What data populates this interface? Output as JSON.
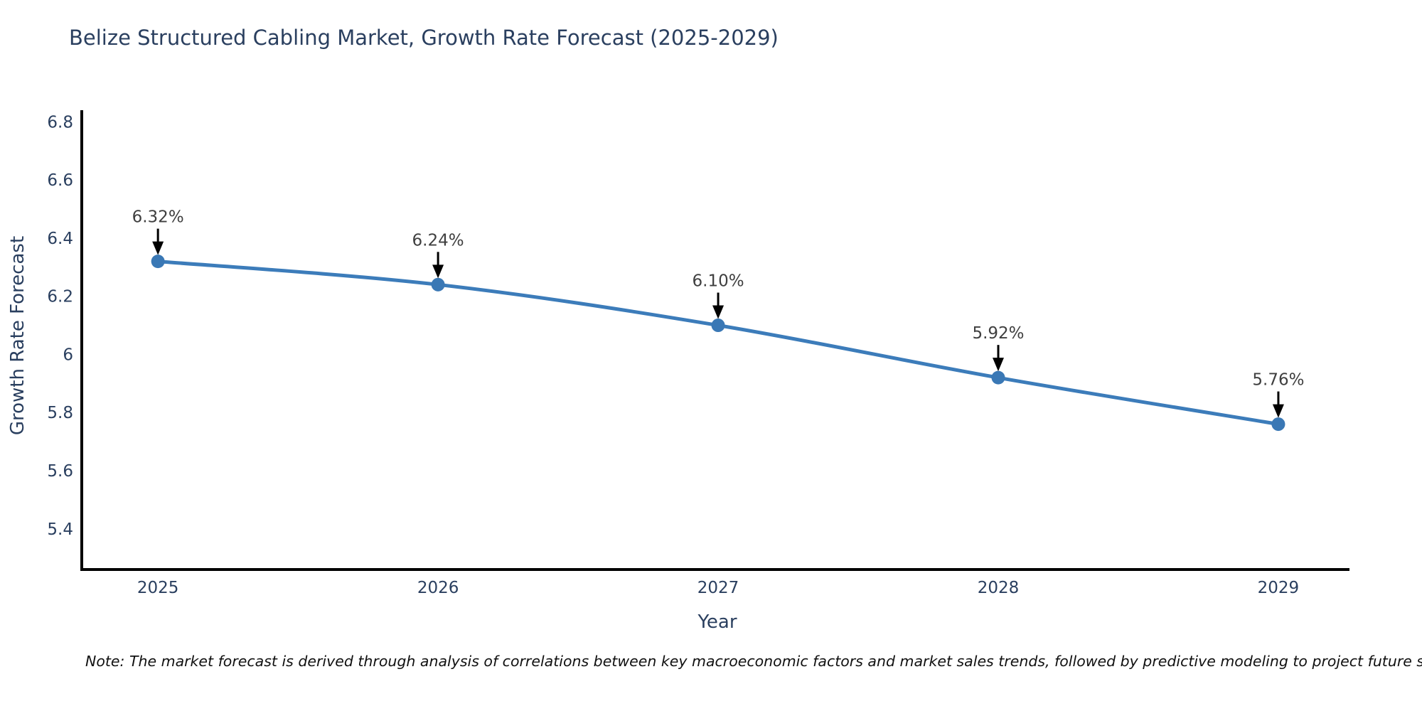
{
  "title": "Belize Structured Cabling Market, Growth Rate Forecast (2025-2029)",
  "note": "Note: The market forecast is derived through analysis of correlations between key macroeconomic factors and market sales trends, followed by predictive modeling to project future sales",
  "colors": {
    "title": "#2a3f5f",
    "axis_text": "#2a3f5f",
    "axis_line": "#000000",
    "line": "#3c7cba",
    "marker": "#3a78b5",
    "annotation_text": "#3f3f3f",
    "arrow": "#000000",
    "background": "#ffffff"
  },
  "chart_data": {
    "type": "line",
    "x": [
      2025,
      2026,
      2027,
      2028,
      2029
    ],
    "values": [
      6.32,
      6.24,
      6.1,
      5.92,
      5.76
    ],
    "point_labels": [
      "6.32%",
      "6.24%",
      "6.10%",
      "5.92%",
      "5.76%"
    ],
    "series_name": "Growth Rate Forecast",
    "title": "Belize Structured Cabling Market, Growth Rate Forecast (2025-2029)",
    "xlabel": "Year",
    "ylabel": "Growth Rate Forecast",
    "xticks": [
      "2025",
      "2026",
      "2027",
      "2028",
      "2029"
    ],
    "xtick_values": [
      2025,
      2026,
      2027,
      2028,
      2029
    ],
    "yticks": [
      "6.8",
      "6.6",
      "6.4",
      "6.2",
      "6",
      "5.8",
      "5.6",
      "5.4"
    ],
    "ytick_values": [
      6.8,
      6.6,
      6.4,
      6.2,
      6.0,
      5.8,
      5.6,
      5.4
    ],
    "xlim": [
      2024.728,
      2029.254
    ],
    "ylim": [
      5.26,
      6.84
    ],
    "grid": false,
    "legend": false,
    "line_shape": "spline",
    "annotation_style": "value-label-with-down-arrow"
  }
}
